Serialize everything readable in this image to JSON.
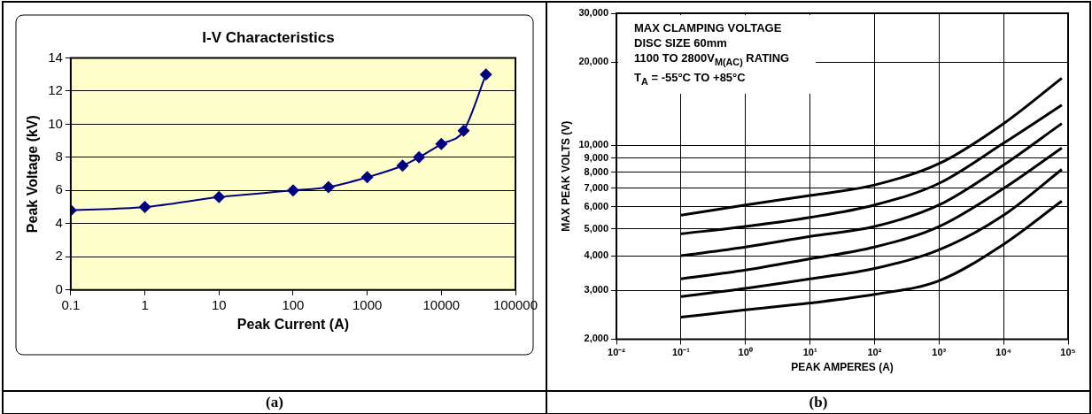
{
  "chart_data": [
    {
      "type": "line",
      "title": "I-V Characteristics",
      "xlabel": "Peak Current (A)",
      "ylabel": "Peak Voltage (kV)",
      "log": "x",
      "x": [
        0.1,
        1,
        10,
        100,
        300,
        1000,
        3000,
        5000,
        10000,
        20000,
        40000
      ],
      "series": [
        {
          "color": "#000080",
          "values": [
            4.8,
            5.0,
            5.6,
            6.0,
            6.2,
            6.8,
            7.5,
            8.0,
            8.8,
            9.6,
            13.0
          ]
        }
      ],
      "xlim": [
        0.1,
        100000
      ],
      "xticks": [
        0.1,
        1,
        10,
        100,
        1000,
        10000,
        100000
      ],
      "ylim": [
        0,
        14
      ],
      "yticks": [
        0,
        2,
        4,
        6,
        8,
        10,
        12,
        14
      ],
      "grid": "y",
      "marker": "diamond",
      "legend": false,
      "annotations": [
        "(a)"
      ]
    },
    {
      "type": "line",
      "xlabel": "PEAK AMPERES (A)",
      "ylabel": "MAX PEAK VOLTS (V)",
      "log": "xy",
      "x": [
        0.1,
        1,
        10,
        100,
        1000,
        10000,
        80000
      ],
      "series": [
        {
          "color": "#000000",
          "values": [
            5600,
            6100,
            6600,
            7200,
            8600,
            12000,
            17500
          ]
        },
        {
          "color": "#000000",
          "values": [
            4800,
            5100,
            5500,
            6100,
            7300,
            10200,
            14000
          ]
        },
        {
          "color": "#000000",
          "values": [
            4000,
            4300,
            4700,
            5100,
            6100,
            8500,
            12000
          ]
        },
        {
          "color": "#000000",
          "values": [
            3300,
            3550,
            3900,
            4300,
            5100,
            7000,
            9800
          ]
        },
        {
          "color": "#000000",
          "values": [
            2850,
            3050,
            3300,
            3600,
            4200,
            5600,
            8200
          ]
        },
        {
          "color": "#000000",
          "values": [
            2400,
            2550,
            2700,
            2900,
            3250,
            4400,
            6300
          ]
        }
      ],
      "xlim": [
        0.01,
        100000
      ],
      "xticks": [
        {
          "value": 0.01,
          "label": "10⁻²"
        },
        {
          "value": 0.1,
          "label": "10⁻¹"
        },
        {
          "value": 1,
          "label": "10⁰"
        },
        {
          "value": 10,
          "label": "10¹"
        },
        {
          "value": 100,
          "label": "10²"
        },
        {
          "value": 1000,
          "label": "10³"
        },
        {
          "value": 10000,
          "label": "10⁴"
        },
        {
          "value": 100000,
          "label": "10⁵"
        }
      ],
      "ylim": [
        2000,
        30000
      ],
      "yticks": [
        {
          "value": 2000,
          "label": "2,000"
        },
        {
          "value": 3000,
          "label": "3,000"
        },
        {
          "value": 4000,
          "label": "4,000"
        },
        {
          "value": 5000,
          "label": "5,000"
        },
        {
          "value": 6000,
          "label": "6,000"
        },
        {
          "value": 7000,
          "label": "7,000"
        },
        {
          "value": 8000,
          "label": "8,000"
        },
        {
          "value": 9000,
          "label": "9,000"
        },
        {
          "value": 10000,
          "label": "10,000"
        },
        {
          "value": 20000,
          "label": "20,000"
        },
        {
          "value": 30000,
          "label": "30,000"
        }
      ],
      "grid": true,
      "marker": "none",
      "legend": false,
      "annotations": [
        "MAX CLAMPING VOLTAGE",
        "DISC SIZE 60mm",
        "1100 TO 2800V$_{M(AC)}$ RATING",
        "T$_{A}$ = -55°C TO +85°C",
        "(b)"
      ]
    }
  ]
}
